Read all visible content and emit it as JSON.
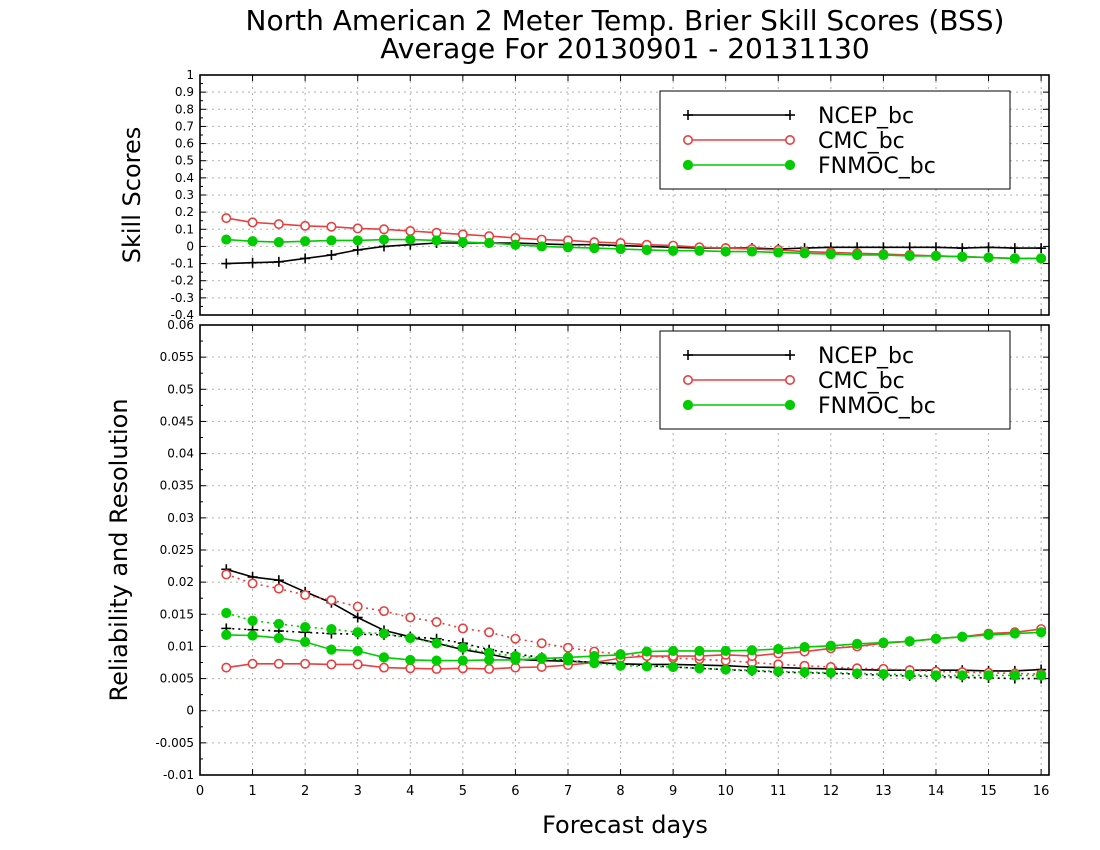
{
  "figure": {
    "title_line1": "North American 2 Meter Temp. Brier Skill Scores (BSS)",
    "title_line2": "Average For 20130901 - 20131130",
    "xlabel": "Forecast days"
  },
  "chart_data": [
    {
      "type": "line",
      "ylabel": "Skill Scores",
      "xlim": [
        0,
        16.15
      ],
      "ylim": [
        -0.4,
        1
      ],
      "yticks": [
        "-0.4",
        "-0.3",
        "-0.2",
        "-0.1",
        "0",
        "0.1",
        "0.2",
        "0.3",
        "0.4",
        "0.5",
        "0.6",
        "0.7",
        "0.8",
        "0.9",
        "1"
      ],
      "xticks": [
        "0",
        "1",
        "2",
        "3",
        "4",
        "5",
        "6",
        "7",
        "8",
        "9",
        "10",
        "11",
        "12",
        "13",
        "14",
        "15",
        "16"
      ],
      "grid": true,
      "legend_position": "top-right",
      "x": [
        0.5,
        1,
        1.5,
        2,
        2.5,
        3,
        3.5,
        4,
        4.5,
        5,
        5.5,
        6,
        6.5,
        7,
        7.5,
        8,
        8.5,
        9,
        9.5,
        10,
        10.5,
        11,
        11.5,
        12,
        12.5,
        13,
        13.5,
        14,
        14.5,
        15,
        15.5,
        16
      ],
      "series": [
        {
          "name": "NCEP_bc",
          "color": "#000000",
          "marker": "plus",
          "values": [
            -0.1,
            -0.095,
            -0.09,
            -0.07,
            -0.05,
            -0.02,
            0.0,
            0.01,
            0.02,
            0.02,
            0.02,
            0.02,
            0.015,
            0.01,
            0.01,
            0.005,
            0.0,
            -0.005,
            -0.01,
            -0.01,
            -0.01,
            -0.015,
            -0.01,
            -0.005,
            -0.005,
            -0.005,
            -0.005,
            -0.005,
            -0.01,
            -0.005,
            -0.01,
            -0.01
          ]
        },
        {
          "name": "CMC_bc",
          "color": "#e84040",
          "marker": "open-circle",
          "values": [
            0.165,
            0.14,
            0.13,
            0.12,
            0.115,
            0.105,
            0.1,
            0.09,
            0.08,
            0.07,
            0.06,
            0.05,
            0.04,
            0.035,
            0.025,
            0.02,
            0.01,
            0.005,
            -0.005,
            -0.01,
            -0.015,
            -0.02,
            -0.03,
            -0.035,
            -0.04,
            -0.045,
            -0.05,
            -0.055,
            -0.06,
            -0.065,
            -0.07,
            -0.07
          ]
        },
        {
          "name": "FNMOC_bc",
          "color": "#00cc00",
          "marker": "filled-circle",
          "values": [
            0.04,
            0.03,
            0.025,
            0.03,
            0.035,
            0.035,
            0.04,
            0.04,
            0.035,
            0.025,
            0.02,
            0.01,
            0.0,
            -0.005,
            -0.01,
            -0.015,
            -0.02,
            -0.025,
            -0.025,
            -0.03,
            -0.03,
            -0.035,
            -0.04,
            -0.045,
            -0.05,
            -0.05,
            -0.055,
            -0.055,
            -0.06,
            -0.065,
            -0.07,
            -0.07
          ]
        }
      ]
    },
    {
      "type": "line",
      "ylabel": "Reliability and Resolution",
      "xlim": [
        0,
        16.15
      ],
      "ylim": [
        -0.01,
        0.06
      ],
      "yticks": [
        "-0.01",
        "-0.005",
        "0",
        "0.005",
        "0.01",
        "0.015",
        "0.02",
        "0.025",
        "0.03",
        "0.035",
        "0.04",
        "0.045",
        "0.05",
        "0.055",
        "0.06"
      ],
      "xticks": [
        "0",
        "1",
        "2",
        "3",
        "4",
        "5",
        "6",
        "7",
        "8",
        "9",
        "10",
        "11",
        "12",
        "13",
        "14",
        "15",
        "16"
      ],
      "grid": true,
      "legend_position": "top-right",
      "x": [
        0.5,
        1,
        1.5,
        2,
        2.5,
        3,
        3.5,
        4,
        4.5,
        5,
        5.5,
        6,
        6.5,
        7,
        7.5,
        8,
        8.5,
        9,
        9.5,
        10,
        10.5,
        11,
        11.5,
        12,
        12.5,
        13,
        13.5,
        14,
        14.5,
        15,
        15.5,
        16
      ],
      "series": [
        {
          "name": "NCEP_bc",
          "color": "#000000",
          "marker": "plus",
          "dash": "solid",
          "values": [
            0.022,
            0.0208,
            0.0203,
            0.0185,
            0.0168,
            0.0145,
            0.0125,
            0.0115,
            0.0105,
            0.0095,
            0.0088,
            0.008,
            0.0078,
            0.0077,
            0.0075,
            0.0073,
            0.0072,
            0.0072,
            0.0071,
            0.007,
            0.0068,
            0.0067,
            0.0066,
            0.0065,
            0.0064,
            0.0063,
            0.0063,
            0.0063,
            0.0063,
            0.0062,
            0.0062,
            0.0064
          ]
        },
        {
          "name": "NCEP_bc",
          "color": "#000000",
          "marker": "plus",
          "dash": "dotted",
          "values": [
            0.0128,
            0.0126,
            0.0124,
            0.0122,
            0.012,
            0.0119,
            0.0118,
            0.0115,
            0.0112,
            0.0105,
            0.0095,
            0.0088,
            0.0083,
            0.0078,
            0.0075,
            0.0073,
            0.007,
            0.0068,
            0.0066,
            0.0064,
            0.0062,
            0.006,
            0.0059,
            0.0058,
            0.0057,
            0.0055,
            0.0054,
            0.0053,
            0.0052,
            0.0051,
            0.005,
            0.005
          ]
        },
        {
          "name": "CMC_bc",
          "color": "#e84040",
          "marker": "open-circle",
          "dash": "dotted",
          "values": [
            0.0212,
            0.0198,
            0.019,
            0.018,
            0.0172,
            0.0162,
            0.0155,
            0.0145,
            0.0138,
            0.0128,
            0.0122,
            0.0112,
            0.0105,
            0.0098,
            0.0092,
            0.0088,
            0.0085,
            0.0082,
            0.008,
            0.0078,
            0.0075,
            0.0072,
            0.007,
            0.0068,
            0.0066,
            0.0065,
            0.0063,
            0.0061,
            0.006,
            0.0059,
            0.0058,
            0.0057
          ]
        },
        {
          "name": "CMC_bc",
          "color": "#e84040",
          "marker": "open-circle",
          "dash": "solid",
          "values": [
            0.0067,
            0.0073,
            0.0073,
            0.0073,
            0.0072,
            0.0072,
            0.0067,
            0.0066,
            0.0065,
            0.0066,
            0.0065,
            0.0067,
            0.0068,
            0.0071,
            0.0075,
            0.0082,
            0.0085,
            0.0085,
            0.0085,
            0.0087,
            0.0085,
            0.0089,
            0.0092,
            0.0097,
            0.01,
            0.0105,
            0.0108,
            0.0112,
            0.0115,
            0.012,
            0.0122,
            0.0127
          ]
        },
        {
          "name": "FNMOC_bc",
          "color": "#00cc00",
          "marker": "filled-circle",
          "dash": "dotted",
          "values": [
            0.0152,
            0.014,
            0.0135,
            0.013,
            0.0127,
            0.0122,
            0.012,
            0.0113,
            0.0105,
            0.0098,
            0.009,
            0.0085,
            0.0082,
            0.0078,
            0.0074,
            0.007,
            0.0069,
            0.0068,
            0.0066,
            0.0064,
            0.0063,
            0.0061,
            0.006,
            0.0059,
            0.0058,
            0.0057,
            0.0056,
            0.0055,
            0.0055,
            0.0055,
            0.0055,
            0.0055
          ]
        },
        {
          "name": "FNMOC_bc",
          "color": "#00cc00",
          "marker": "filled-circle",
          "dash": "solid",
          "values": [
            0.0118,
            0.0117,
            0.0113,
            0.0107,
            0.0095,
            0.0093,
            0.0083,
            0.0079,
            0.0078,
            0.0078,
            0.0079,
            0.0079,
            0.0081,
            0.0083,
            0.0085,
            0.0087,
            0.0092,
            0.0093,
            0.0093,
            0.0093,
            0.0094,
            0.0096,
            0.0099,
            0.0101,
            0.0104,
            0.0106,
            0.0108,
            0.0112,
            0.0115,
            0.0118,
            0.012,
            0.0122
          ]
        }
      ]
    }
  ]
}
